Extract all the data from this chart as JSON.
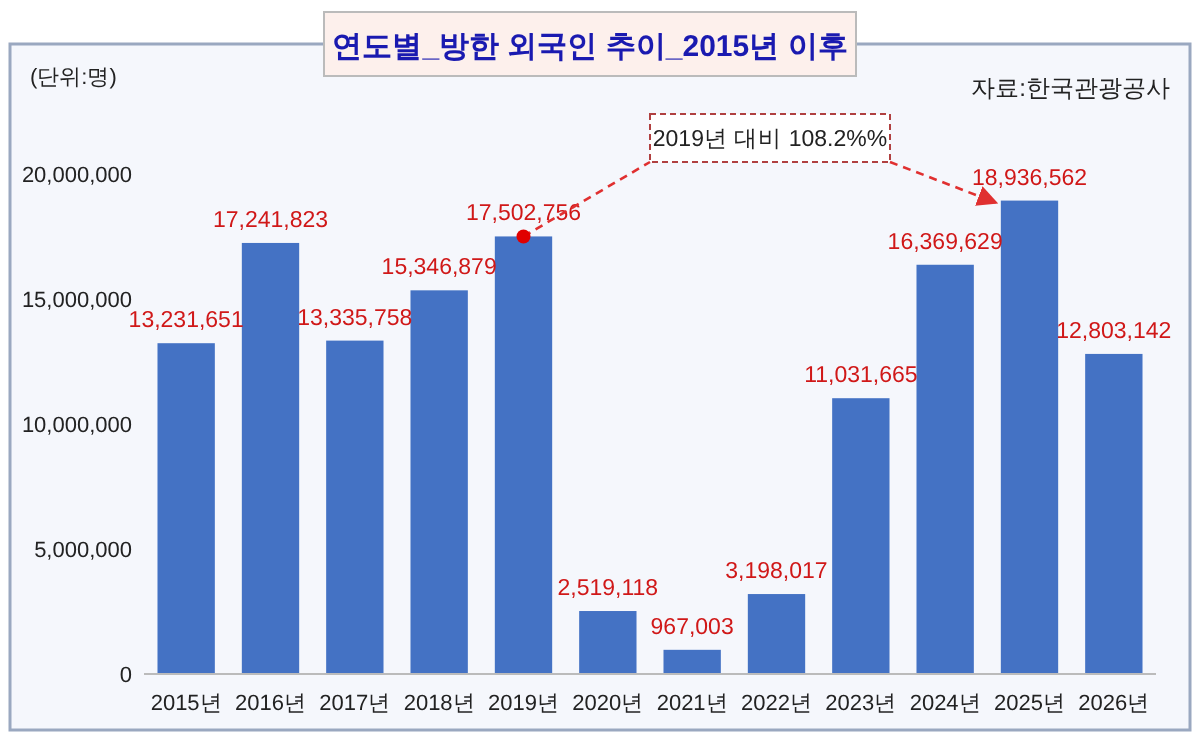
{
  "chart_data": {
    "type": "bar",
    "title": "연도별_방한 외국인 추이_2015년 이후",
    "ylabel": "(단위:명)",
    "annotations": [
      "자료:한국관광공사",
      {
        "text": "2019년 대비 108.2%%",
        "x": "2019년",
        "y": 17502756
      }
    ],
    "categories": [
      "2015년",
      "2016년",
      "2017년",
      "2018년",
      "2019년",
      "2020년",
      "2021년",
      "2022년",
      "2023년",
      "2024년",
      "2025년",
      "2026년"
    ],
    "values": [
      13231651,
      17241823,
      13335758,
      15346879,
      17502756,
      2519118,
      967003,
      3198017,
      11031665,
      16369629,
      18936562,
      12803142
    ],
    "value_labels": [
      "13,231,651",
      "17,241,823",
      "13,335,758",
      "15,346,879",
      "17,502,756",
      "2,519,118",
      "967,003",
      "3,198,017",
      "11,031,665",
      "16,369,629",
      "18,936,562",
      "12,803,142"
    ],
    "color": "#4472c4",
    "ylim": [
      0,
      20000000
    ],
    "yticks": [
      {
        "value": 0,
        "label": "0"
      },
      {
        "value": 5000000,
        "label": "5,000,000"
      },
      {
        "value": 10000000,
        "label": "10,000,000"
      },
      {
        "value": 15000000,
        "label": "15,000,000"
      },
      {
        "value": 20000000,
        "label": "20,000,000"
      }
    ],
    "grid": false
  }
}
